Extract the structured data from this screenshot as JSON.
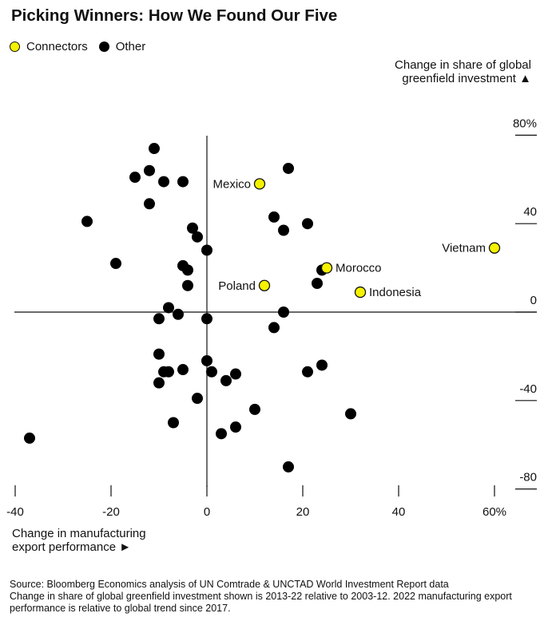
{
  "chart_data": {
    "type": "scatter",
    "title": "Picking Winners: How We Found Our Five",
    "xlabel": "Change in manufacturing export performance",
    "xlabel_marker": "►",
    "ylabel": "Change in share of global greenfield investment",
    "ylabel_marker": "▲",
    "xlim": [
      -40,
      60
    ],
    "ylim": [
      -80,
      80
    ],
    "x_ticks": [
      {
        "value": -40,
        "label": "-40"
      },
      {
        "value": -20,
        "label": "-20"
      },
      {
        "value": 0,
        "label": "0"
      },
      {
        "value": 20,
        "label": "20"
      },
      {
        "value": 40,
        "label": "40"
      },
      {
        "value": 60,
        "label": "60%"
      }
    ],
    "y_ticks": [
      {
        "value": 80,
        "label": "80%"
      },
      {
        "value": 40,
        "label": "40"
      },
      {
        "value": 0,
        "label": "0"
      },
      {
        "value": -40,
        "label": "-40"
      },
      {
        "value": -80,
        "label": "-80"
      }
    ],
    "legend": {
      "placement": "top-left",
      "items": [
        {
          "name": "Connectors",
          "color": "#f5f200"
        },
        {
          "name": "Other",
          "color": "#000000"
        }
      ]
    },
    "series": [
      {
        "name": "Connectors",
        "color": "#f5f200",
        "points": [
          {
            "label": "Mexico",
            "x": 11,
            "y": 58
          },
          {
            "label": "Vietnam",
            "x": 60,
            "y": 29
          },
          {
            "label": "Morocco",
            "x": 25,
            "y": 20
          },
          {
            "label": "Poland",
            "x": 12,
            "y": 12
          },
          {
            "label": "Indonesia",
            "x": 32,
            "y": 9
          }
        ]
      },
      {
        "name": "Other",
        "color": "#000000",
        "points": [
          {
            "x": -11,
            "y": 74
          },
          {
            "x": -12,
            "y": 64
          },
          {
            "x": 17,
            "y": 65
          },
          {
            "x": -15,
            "y": 61
          },
          {
            "x": -9,
            "y": 59
          },
          {
            "x": -5,
            "y": 59
          },
          {
            "x": -12,
            "y": 49
          },
          {
            "x": -25,
            "y": 41
          },
          {
            "x": 14,
            "y": 43
          },
          {
            "x": 21,
            "y": 40
          },
          {
            "x": -3,
            "y": 38
          },
          {
            "x": 16,
            "y": 37
          },
          {
            "x": -2,
            "y": 34
          },
          {
            "x": 0,
            "y": 28
          },
          {
            "x": -19,
            "y": 22
          },
          {
            "x": -5,
            "y": 21
          },
          {
            "x": -4,
            "y": 19
          },
          {
            "x": 24,
            "y": 19
          },
          {
            "x": 23,
            "y": 13
          },
          {
            "x": -4,
            "y": 12
          },
          {
            "x": -8,
            "y": 2
          },
          {
            "x": 16,
            "y": 0
          },
          {
            "x": -6,
            "y": -1
          },
          {
            "x": -10,
            "y": -3
          },
          {
            "x": 0,
            "y": -3
          },
          {
            "x": 14,
            "y": -7
          },
          {
            "x": -10,
            "y": -19
          },
          {
            "x": 0,
            "y": -22
          },
          {
            "x": -9,
            "y": -27
          },
          {
            "x": -8,
            "y": -27
          },
          {
            "x": -5,
            "y": -26
          },
          {
            "x": 1,
            "y": -27
          },
          {
            "x": 24,
            "y": -24
          },
          {
            "x": 21,
            "y": -27
          },
          {
            "x": 6,
            "y": -28
          },
          {
            "x": 4,
            "y": -31
          },
          {
            "x": -10,
            "y": -32
          },
          {
            "x": -2,
            "y": -39
          },
          {
            "x": 10,
            "y": -44
          },
          {
            "x": 30,
            "y": -46
          },
          {
            "x": -7,
            "y": -50
          },
          {
            "x": 6,
            "y": -52
          },
          {
            "x": 3,
            "y": -55
          },
          {
            "x": -37,
            "y": -57
          },
          {
            "x": 17,
            "y": -70
          }
        ]
      }
    ]
  },
  "source": {
    "line1": "Source: Bloomberg Economics analysis of UN Comtrade & UNCTAD World Investment Report data",
    "line2": "Change in share of global greenfield investment shown is 2013-22 relative to 2003-12. 2022 manufacturing export performance is relative to global trend since 2017."
  }
}
